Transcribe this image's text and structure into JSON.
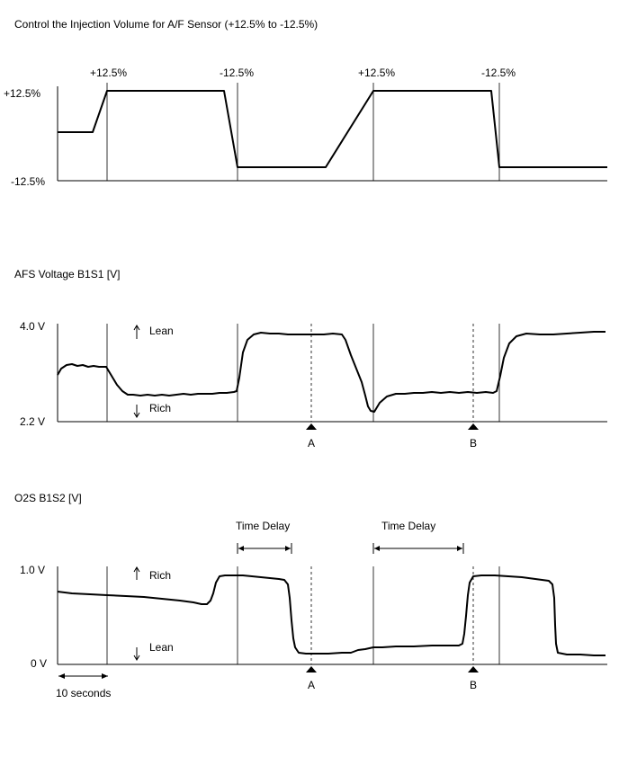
{
  "panel1": {
    "title": "Control the Injection Volume for A/F Sensor (+12.5% to -12.5%)",
    "y_top": "+12.5%",
    "y_bottom": "-12.5%",
    "marker_labels": [
      "+12.5%",
      "-12.5%",
      "+12.5%",
      "-12.5%"
    ]
  },
  "panel2": {
    "title": "AFS Voltage B1S1 [V]",
    "y_top": "4.0 V",
    "y_bottom": "2.2 V",
    "lean_label": "Lean",
    "rich_label": "Rich",
    "point_a": "A",
    "point_b": "B"
  },
  "panel3": {
    "title": "O2S B1S2 [V]",
    "y_top": "1.0 V",
    "y_bottom": "0 V",
    "rich_label": "Rich",
    "lean_label": "Lean",
    "delay_label_1": "Time Delay",
    "delay_label_2": "Time Delay",
    "point_a": "A",
    "point_b": "B",
    "time_scale_label": "10 seconds"
  }
}
